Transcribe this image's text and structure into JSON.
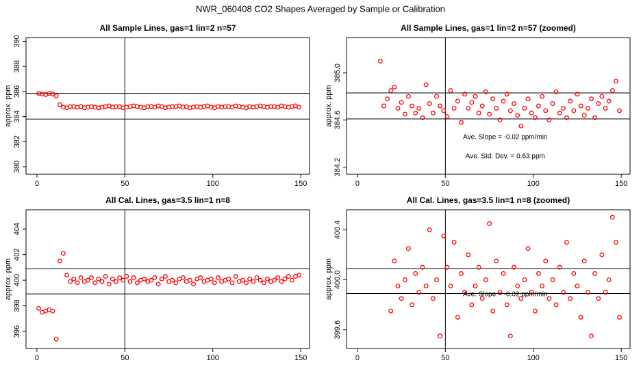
{
  "title": "NWR_060408  CO2 Shapes Averaged by Sample or Calibration",
  "chart_data": [
    {
      "type": "scatter",
      "title": "All Sample Lines, gas=1 lin=2 n=57",
      "ylabel": "approx. ppm",
      "color": "#ff0000",
      "xlim": [
        -6.2,
        155
      ],
      "xticks": [
        0,
        50,
        100,
        150
      ],
      "ylim": [
        379.4,
        390.3
      ],
      "yticks": [
        380,
        382,
        384,
        386,
        388,
        390
      ],
      "vlines": [
        50
      ],
      "hlines": [
        385.85,
        383.8
      ],
      "x": [
        1,
        3,
        5,
        7,
        9,
        11,
        13,
        15,
        17,
        19,
        21,
        23,
        25,
        27,
        29,
        31,
        33,
        35,
        37,
        39,
        41,
        43,
        45,
        47,
        49,
        51,
        53,
        55,
        57,
        59,
        61,
        63,
        65,
        67,
        69,
        71,
        73,
        75,
        77,
        79,
        81,
        83,
        85,
        87,
        89,
        91,
        93,
        95,
        97,
        99,
        101,
        103,
        105,
        107,
        109,
        111,
        113,
        115,
        117,
        119,
        121,
        123,
        125,
        127,
        129,
        131,
        133,
        135,
        137,
        139,
        141,
        143,
        145,
        147,
        149
      ],
      "values": [
        385.85,
        385.8,
        385.75,
        385.85,
        385.8,
        385.65,
        384.95,
        384.75,
        384.7,
        384.8,
        384.8,
        384.75,
        384.8,
        384.7,
        384.75,
        384.8,
        384.75,
        384.7,
        384.75,
        384.8,
        384.85,
        384.75,
        384.8,
        384.8,
        384.7,
        384.75,
        384.8,
        384.85,
        384.8,
        384.75,
        384.7,
        384.8,
        384.8,
        384.75,
        384.85,
        384.8,
        384.7,
        384.75,
        384.8,
        384.8,
        384.85,
        384.75,
        384.8,
        384.7,
        384.75,
        384.8,
        384.75,
        384.8,
        384.85,
        384.75,
        384.7,
        384.8,
        384.75,
        384.8,
        384.8,
        384.75,
        384.85,
        384.8,
        384.75,
        384.7,
        384.8,
        384.75,
        384.8,
        384.85,
        384.8,
        384.75,
        384.8,
        384.8,
        384.75,
        384.85,
        384.8,
        384.75,
        384.8,
        384.85,
        384.75
      ]
    },
    {
      "type": "scatter",
      "title": "All Sample Lines, gas=1 lin=2 n=57 (zoomed)",
      "ylabel": "approx. ppm",
      "color": "#ff0000",
      "xlim": [
        -6.2,
        155
      ],
      "xticks": [
        0,
        50,
        100,
        150
      ],
      "ylim": [
        384.14,
        385.3
      ],
      "yticks": [
        384.2,
        384.6,
        {
          "value": 385.0,
          "label": "385.0"
        }
      ],
      "vlines": [
        50
      ],
      "hlines": [
        384.83,
        384.61
      ],
      "annotations": [
        "Ave. Slope =  -0.02  ppm/min",
        "Ave. Std. Dev. =  0.63  ppm"
      ],
      "x": [
        13,
        15,
        17,
        19,
        21,
        23,
        25,
        27,
        29,
        31,
        33,
        35,
        37,
        39,
        41,
        43,
        45,
        47,
        49,
        51,
        53,
        55,
        57,
        59,
        61,
        63,
        65,
        67,
        69,
        71,
        73,
        75,
        77,
        79,
        81,
        83,
        85,
        87,
        89,
        91,
        93,
        95,
        97,
        99,
        101,
        103,
        105,
        107,
        109,
        111,
        113,
        115,
        117,
        119,
        121,
        123,
        125,
        127,
        129,
        131,
        133,
        135,
        137,
        139,
        141,
        143,
        145,
        147,
        149
      ],
      "values": [
        385.1,
        384.72,
        384.78,
        384.85,
        384.88,
        384.7,
        384.75,
        384.65,
        384.8,
        384.72,
        384.66,
        384.7,
        384.62,
        384.9,
        384.74,
        384.66,
        384.8,
        384.72,
        384.68,
        384.63,
        384.85,
        384.7,
        384.76,
        384.58,
        384.82,
        384.7,
        384.75,
        384.8,
        384.66,
        384.72,
        384.84,
        384.65,
        384.78,
        384.7,
        384.6,
        384.76,
        384.82,
        384.68,
        384.74,
        384.64,
        384.55,
        384.7,
        384.78,
        384.66,
        384.62,
        384.72,
        384.8,
        384.68,
        384.6,
        384.74,
        384.84,
        384.66,
        384.7,
        384.62,
        384.76,
        384.68,
        384.82,
        384.72,
        384.64,
        384.7,
        384.78,
        384.62,
        384.74,
        384.8,
        384.7,
        384.76,
        384.85,
        384.93,
        384.68
      ]
    },
    {
      "type": "scatter",
      "title": "All Cal. Lines, gas=3.5 lin=1 n=8",
      "ylabel": "approx. ppm",
      "color": "#ff0000",
      "xlim": [
        -6.2,
        155
      ],
      "xticks": [
        0,
        50,
        100,
        150
      ],
      "ylim": [
        394.67,
        405.5
      ],
      "yticks": [
        396,
        398,
        400,
        402,
        404
      ],
      "vlines": [
        50
      ],
      "hlines": [
        400.9,
        398.93
      ],
      "x": [
        1,
        3,
        5,
        7,
        9,
        11,
        13,
        15,
        17,
        19,
        21,
        23,
        25,
        27,
        29,
        31,
        33,
        35,
        37,
        39,
        41,
        43,
        45,
        47,
        49,
        51,
        53,
        55,
        57,
        59,
        61,
        63,
        65,
        67,
        69,
        71,
        73,
        75,
        77,
        79,
        81,
        83,
        85,
        87,
        89,
        91,
        93,
        95,
        97,
        99,
        101,
        103,
        105,
        107,
        109,
        111,
        113,
        115,
        117,
        119,
        121,
        123,
        125,
        127,
        129,
        131,
        133,
        135,
        137,
        139,
        141,
        143,
        145,
        147,
        149
      ],
      "values": [
        397.8,
        397.5,
        397.6,
        397.7,
        397.6,
        395.4,
        401.5,
        402.1,
        400.4,
        399.9,
        400.1,
        399.8,
        400.2,
        399.9,
        400.0,
        400.2,
        399.8,
        400.1,
        399.9,
        400.3,
        399.7,
        400.1,
        399.9,
        400.2,
        400.0,
        400.3,
        399.9,
        400.2,
        399.8,
        400.0,
        400.1,
        399.9,
        400.0,
        400.2,
        399.7,
        400.1,
        400.3,
        399.9,
        400.0,
        399.8,
        400.1,
        400.2,
        399.9,
        400.0,
        399.7,
        400.1,
        400.2,
        399.9,
        400.0,
        400.1,
        399.8,
        400.2,
        399.9,
        400.0,
        400.1,
        399.8,
        400.3,
        399.9,
        400.0,
        399.8,
        400.1,
        399.9,
        400.2,
        400.0,
        399.8,
        400.1,
        399.9,
        400.0,
        400.2,
        399.9,
        400.1,
        400.3,
        400.0,
        400.3,
        400.4
      ]
    },
    {
      "type": "scatter",
      "title": "All Cal. Lines, gas=3.5 lin=1 n=8 (zoomed)",
      "ylabel": "approx. ppm",
      "color": "#ff0000",
      "xlim": [
        -6.2,
        155
      ],
      "xticks": [
        0,
        50,
        100,
        150
      ],
      "ylim": [
        399.45,
        400.56
      ],
      "yticks": [
        399.6,
        {
          "value": 400.0,
          "label": "400.0"
        },
        400.4
      ],
      "vlines": [
        50
      ],
      "hlines": [
        400.09,
        399.89
      ],
      "annotations": [
        "Ave. Slope =  -0.02  ppm/min"
      ],
      "x": [
        19,
        21,
        23,
        25,
        27,
        29,
        31,
        33,
        35,
        37,
        39,
        41,
        43,
        45,
        47,
        49,
        51,
        53,
        55,
        57,
        59,
        61,
        63,
        65,
        67,
        69,
        71,
        73,
        75,
        77,
        79,
        81,
        83,
        85,
        87,
        89,
        91,
        93,
        95,
        97,
        99,
        101,
        103,
        105,
        107,
        109,
        111,
        113,
        115,
        117,
        119,
        121,
        123,
        125,
        127,
        129,
        131,
        133,
        135,
        137,
        139,
        141,
        143,
        145,
        147,
        149
      ],
      "values": [
        399.75,
        400.15,
        399.95,
        399.85,
        400.0,
        400.25,
        399.8,
        400.05,
        399.9,
        400.1,
        399.95,
        400.4,
        399.85,
        400.0,
        399.55,
        400.35,
        400.1,
        399.95,
        400.3,
        399.7,
        400.05,
        399.9,
        400.2,
        399.8,
        399.95,
        400.1,
        399.85,
        400.0,
        400.45,
        399.75,
        400.15,
        399.9,
        400.05,
        399.8,
        399.55,
        400.1,
        399.95,
        399.85,
        400.0,
        400.25,
        399.9,
        399.75,
        400.05,
        399.95,
        400.15,
        399.85,
        400.0,
        399.8,
        400.1,
        399.9,
        400.3,
        399.85,
        400.05,
        399.95,
        399.7,
        400.15,
        399.9,
        399.55,
        400.05,
        399.85,
        400.2,
        399.9,
        400.0,
        400.5,
        400.3,
        399.7
      ]
    }
  ]
}
